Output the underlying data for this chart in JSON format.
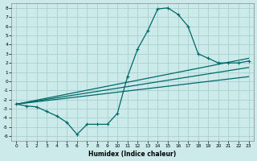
{
  "xlabel": "Humidex (Indice chaleur)",
  "xlim": [
    -0.5,
    23.5
  ],
  "ylim": [
    -6.5,
    8.5
  ],
  "xticks": [
    0,
    1,
    2,
    3,
    4,
    5,
    6,
    7,
    8,
    9,
    10,
    11,
    12,
    13,
    14,
    15,
    16,
    17,
    18,
    19,
    20,
    21,
    22,
    23
  ],
  "yticks": [
    -6,
    -5,
    -4,
    -3,
    -2,
    -1,
    0,
    1,
    2,
    3,
    4,
    5,
    6,
    7,
    8
  ],
  "bg_color": "#cceaea",
  "grid_color": "#aad4d4",
  "line_color": "#006868",
  "curve_x": [
    0,
    1,
    2,
    3,
    4,
    5,
    6,
    7,
    8,
    9,
    10,
    11,
    12,
    13,
    14,
    15,
    16,
    17,
    18,
    19,
    20,
    21,
    22,
    23
  ],
  "curve_y": [
    -2.5,
    -2.7,
    -2.8,
    -3.3,
    -3.8,
    -4.5,
    -5.8,
    -4.7,
    -4.7,
    -4.7,
    -3.5,
    0.5,
    3.5,
    5.5,
    7.9,
    8.0,
    7.3,
    6.0,
    3.0,
    2.5,
    2.0,
    2.0,
    2.0,
    2.2
  ],
  "line1_x": [
    0,
    23
  ],
  "line1_y": [
    -2.5,
    2.5
  ],
  "line2_x": [
    0,
    23
  ],
  "line2_y": [
    -2.5,
    1.5
  ],
  "line3_x": [
    0,
    23
  ],
  "line3_y": [
    -2.5,
    0.5
  ]
}
